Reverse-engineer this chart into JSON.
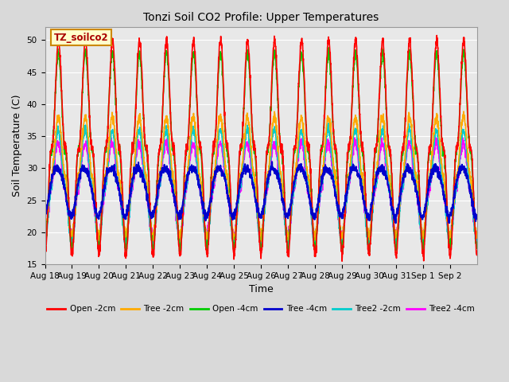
{
  "title": "Tonzi Soil CO2 Profile: Upper Temperatures",
  "xlabel": "Time",
  "ylabel": "Soil Temperature (C)",
  "ylim": [
    15,
    52
  ],
  "yticks": [
    15,
    20,
    25,
    30,
    35,
    40,
    45,
    50
  ],
  "annotation_text": "TZ_soilco2",
  "annotation_bbox_facecolor": "#ffffcc",
  "annotation_bbox_edgecolor": "#cc8800",
  "x_tick_labels": [
    "Aug 18",
    "Aug 19",
    "Aug 20",
    "Aug 21",
    "Aug 22",
    "Aug 23",
    "Aug 24",
    "Aug 25",
    "Aug 26",
    "Aug 27",
    "Aug 28",
    "Aug 29",
    "Aug 30",
    "Aug 31",
    "Sep 1",
    "Sep 2"
  ],
  "series": [
    {
      "label": "Open -2cm",
      "color": "#ff0000",
      "lw": 1.2
    },
    {
      "label": "Tree -2cm",
      "color": "#ffaa00",
      "lw": 1.2
    },
    {
      "label": "Open -4cm",
      "color": "#00cc00",
      "lw": 1.2
    },
    {
      "label": "Tree -4cm",
      "color": "#0000cc",
      "lw": 1.5
    },
    {
      "label": "Tree2 -2cm",
      "color": "#00cccc",
      "lw": 1.2
    },
    {
      "label": "Tree2 -4cm",
      "color": "#ff00ff",
      "lw": 1.2
    }
  ],
  "bg_color": "#d9d9d9",
  "plot_bg_color": "#e8e8e8",
  "grid_color": "#ffffff"
}
